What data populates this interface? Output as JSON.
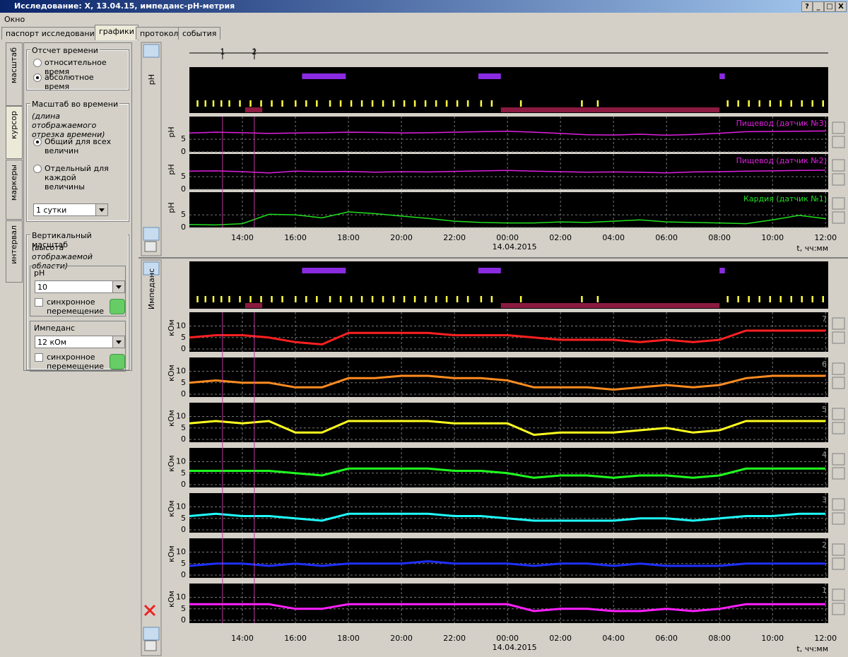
{
  "window": {
    "title": "Исследование: X, 13.04.15, импеданс-рН-метрия",
    "buttons": [
      "?",
      "_",
      "□",
      "X"
    ],
    "menu": [
      "Окно"
    ],
    "tabs": [
      "паспорт исследования",
      "графики",
      "протокол",
      "события"
    ],
    "active_tab": 1
  },
  "left_panel": {
    "vertical_tabs": [
      "масштаб",
      "курсор",
      "маркеры",
      "интервал"
    ],
    "time_reference": {
      "title": "Отсчет времени",
      "options": [
        "относительное время",
        "абсолютное время"
      ],
      "selected": 1
    },
    "time_scale": {
      "title": "Масштаб во времени",
      "note": "(длина отображаемого отрезка времени)",
      "options": [
        "Общий для всех величин",
        "Отдельный для каждой величины"
      ],
      "selected": 0,
      "select": "1 сутки"
    },
    "vertical_scale": {
      "title": "Вертикальный масштаб",
      "note": "(высота отображаемой области)",
      "groups": [
        {
          "title": "pH",
          "select": "10",
          "checkbox": "синхронное перемещение"
        },
        {
          "title": "Импеданс",
          "select": "12 кОм",
          "checkbox": "синхронное перемещение"
        }
      ]
    }
  },
  "cursor_markers": [
    {
      "label": "1",
      "x": 13.25
    },
    {
      "label": "2",
      "x": 14.45
    }
  ],
  "events": {
    "purple_intervals": [
      [
        16.25,
        17.9
      ],
      [
        22.9,
        23.75
      ],
      [
        32.0,
        32.2
      ]
    ],
    "dark_red_intervals": [
      [
        14.1,
        14.75
      ],
      [
        23.75,
        32.0
      ]
    ],
    "yellow_ticks": [
      12.3,
      12.6,
      12.9,
      13.2,
      13.5,
      13.9,
      14.3,
      14.7,
      15.1,
      15.5,
      16.0,
      16.4,
      16.8,
      17.3,
      17.7,
      18.1,
      18.5,
      18.9,
      19.3,
      19.7,
      20.1,
      20.5,
      20.9,
      21.3,
      21.7,
      22.1,
      22.5,
      23.0,
      23.4,
      24.5,
      26.8,
      27.4,
      32.3,
      32.7,
      33.1,
      33.5,
      33.9,
      34.3,
      34.7,
      35.1,
      35.5,
      35.9
    ]
  },
  "chart_data": [
    {
      "type": "line",
      "label": "pH",
      "ylabel": "pH",
      "xlabel": "t, чч:мм",
      "date_label": "14.04.2015",
      "x": [
        12,
        13,
        14,
        15,
        16,
        17,
        18,
        19,
        20,
        21,
        22,
        23,
        24,
        25,
        26,
        27,
        28,
        29,
        30,
        31,
        32,
        33,
        34,
        35,
        36
      ],
      "xlim": [
        12,
        36.1
      ],
      "xticks": [
        {
          "value": 14,
          "label": "14:00"
        },
        {
          "value": 16,
          "label": "16:00"
        },
        {
          "value": 18,
          "label": "18:00"
        },
        {
          "value": 20,
          "label": "20:00"
        },
        {
          "value": 22,
          "label": "22:00"
        },
        {
          "value": 24,
          "label": "00:00"
        },
        {
          "value": 26,
          "label": "02:00"
        },
        {
          "value": 28,
          "label": "04:00"
        },
        {
          "value": 30,
          "label": "06:00"
        },
        {
          "value": 32,
          "label": "08:00"
        },
        {
          "value": 34,
          "label": "10:00"
        },
        {
          "value": 36,
          "label": "12:00"
        }
      ],
      "ylim": [
        0,
        14
      ],
      "yticks": [
        0,
        5
      ],
      "series": [
        {
          "name": "Пищевод (датчик №3)",
          "color": "#e020e0",
          "values": [
            7.5,
            7.8,
            7.6,
            7.3,
            7.5,
            7.6,
            7.8,
            7.7,
            7.5,
            7.6,
            7.8,
            8.0,
            8.2,
            7.8,
            7.3,
            6.8,
            6.7,
            7.0,
            6.6,
            6.9,
            7.4,
            8.0,
            8.1,
            8.2,
            8.3
          ]
        },
        {
          "name": "Пищевод (датчик №2)",
          "color": "#e020e0",
          "values": [
            7.2,
            7.3,
            7.0,
            6.5,
            7.2,
            7.0,
            7.1,
            6.8,
            7.0,
            6.9,
            7.1,
            7.3,
            7.5,
            7.2,
            7.0,
            6.8,
            6.9,
            6.8,
            6.5,
            6.9,
            7.0,
            7.2,
            7.3,
            7.5,
            7.6
          ]
        },
        {
          "name": "Кардия (датчик №1)",
          "color": "#20e020",
          "values": [
            1.2,
            1.0,
            1.5,
            5.2,
            5.0,
            3.8,
            6.2,
            5.5,
            4.5,
            3.6,
            2.5,
            2.0,
            1.8,
            1.8,
            2.2,
            2.0,
            2.5,
            3.0,
            2.2,
            2.0,
            1.8,
            1.5,
            3.0,
            4.8,
            3.5
          ]
        }
      ]
    },
    {
      "type": "line",
      "label": "Импеданс",
      "ylabel": "кОм",
      "xlabel": "t, чч:мм",
      "date_label": "14.04.2015",
      "x": [
        12,
        13,
        14,
        15,
        16,
        17,
        18,
        19,
        20,
        21,
        22,
        23,
        24,
        25,
        26,
        27,
        28,
        29,
        30,
        31,
        32,
        33,
        34,
        35,
        36
      ],
      "xlim": [
        12,
        36.1
      ],
      "xticks": [
        {
          "value": 14,
          "label": "14:00"
        },
        {
          "value": 16,
          "label": "16:00"
        },
        {
          "value": 18,
          "label": "18:00"
        },
        {
          "value": 20,
          "label": "20:00"
        },
        {
          "value": 22,
          "label": "22:00"
        },
        {
          "value": 24,
          "label": "00:00"
        },
        {
          "value": 26,
          "label": "02:00"
        },
        {
          "value": 28,
          "label": "04:00"
        },
        {
          "value": 30,
          "label": "06:00"
        },
        {
          "value": 32,
          "label": "08:00"
        },
        {
          "value": 34,
          "label": "10:00"
        },
        {
          "value": 36,
          "label": "12:00"
        }
      ],
      "ylim": [
        0,
        16
      ],
      "yticks": [
        0,
        5,
        10
      ],
      "series": [
        {
          "name": "7",
          "color": "#ff2020",
          "values": [
            5,
            6,
            6,
            5,
            3,
            2,
            7,
            7,
            7,
            7,
            6,
            6,
            6,
            5,
            4,
            4,
            4,
            3,
            4,
            3,
            4,
            8,
            8,
            8,
            8
          ]
        },
        {
          "name": "6",
          "color": "#ff8c20",
          "values": [
            5,
            6,
            5,
            5,
            3,
            3,
            7,
            7,
            8,
            8,
            7,
            7,
            6,
            3,
            3,
            3,
            2,
            3,
            4,
            3,
            4,
            7,
            8,
            8,
            8
          ]
        },
        {
          "name": "5",
          "color": "#ffff20",
          "values": [
            7,
            8,
            7,
            8,
            3,
            3,
            8,
            8,
            8,
            8,
            7,
            7,
            7,
            2,
            3,
            3,
            3,
            4,
            5,
            3,
            4,
            8,
            8,
            8,
            8
          ]
        },
        {
          "name": "4",
          "color": "#20ff20",
          "values": [
            6,
            6,
            6,
            6,
            5,
            4,
            7,
            7,
            7,
            7,
            6,
            6,
            5,
            3,
            4,
            4,
            3,
            4,
            4,
            3,
            4,
            7,
            7,
            7,
            7
          ]
        },
        {
          "name": "3",
          "color": "#20ffff",
          "values": [
            6,
            7,
            6,
            6,
            5,
            4,
            7,
            7,
            7,
            7,
            6,
            6,
            5,
            4,
            4,
            4,
            4,
            5,
            5,
            4,
            5,
            6,
            6,
            7,
            7
          ]
        },
        {
          "name": "2",
          "color": "#2030ff",
          "values": [
            4,
            5,
            5,
            4,
            5,
            4,
            5,
            5,
            5,
            6,
            5,
            5,
            5,
            4,
            5,
            5,
            4,
            5,
            4,
            4,
            4,
            5,
            5,
            5,
            5
          ]
        },
        {
          "name": "1",
          "color": "#ff20ff",
          "values": [
            7,
            7,
            7,
            7,
            5,
            5,
            7,
            7,
            7,
            7,
            7,
            7,
            7,
            4,
            5,
            5,
            4,
            4,
            5,
            4,
            5,
            7,
            7,
            7,
            7
          ]
        }
      ]
    }
  ]
}
